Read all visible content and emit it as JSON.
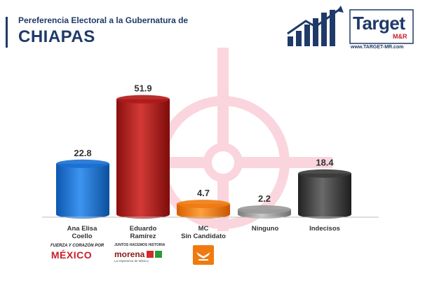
{
  "header": {
    "subtitle": "Pereferencia Electoral a la Gubernatura de",
    "title": "CHIAPAS"
  },
  "brand": {
    "name_part1": "Tar",
    "name_part2": "get",
    "suffix": "M&R",
    "url": "www.TARGET-MR.com",
    "colors": {
      "navy": "#1f3a68",
      "red": "#c8202a"
    }
  },
  "candidates": [
    {
      "line1": "Ana Elisa",
      "line2": "Coello",
      "logo": "fuerza-y-corazon-por-mexico-logo"
    },
    {
      "line1": "Eduardo",
      "line2": "Ramírez",
      "logo": "morena-coalition-logo"
    },
    {
      "line1": "MC",
      "line2": "Sin Candidato",
      "logo": "movimiento-ciudadano-logo"
    },
    {
      "line1": "Ninguno",
      "line2": "",
      "logo": null
    },
    {
      "line1": "Indecisos",
      "line2": "",
      "logo": null
    }
  ],
  "party_logo_text": {
    "fuerza_top": "FUERZA Y CORAZÓN POR",
    "fuerza_main": "MÉXICO",
    "morena_top": "JUNTOS HACEMOS HISTORIA",
    "morena_main": "morena",
    "morena_sub": "La esperanza de México"
  },
  "chart_data": {
    "type": "bar",
    "categories": [
      "Ana Elisa Coello",
      "Eduardo Ramírez",
      "MC Sin Candidato",
      "Ninguno",
      "Indecisos"
    ],
    "values": [
      22.8,
      51.9,
      4.7,
      2.2,
      18.4
    ],
    "data_labels": [
      "22.8",
      "51.9",
      "4.7",
      "2.2",
      "18.4"
    ],
    "colors": [
      "#1a6fd1",
      "#b01818",
      "#f07a10",
      "#9a9a9a",
      "#3a3a3a"
    ],
    "ylim": [
      0,
      60
    ],
    "grid": false,
    "legend": "none",
    "title": "",
    "xlabel": "",
    "ylabel": ""
  }
}
